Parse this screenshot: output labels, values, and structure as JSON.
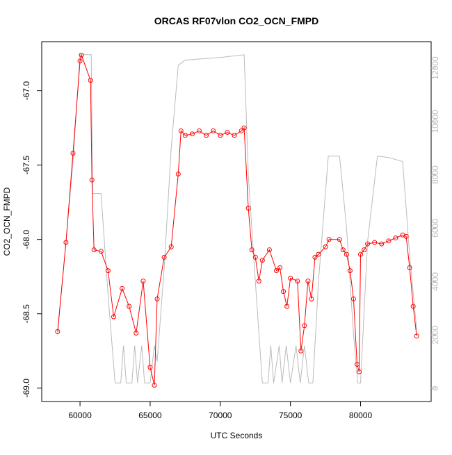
{
  "chart_data": {
    "type": "line",
    "title": "ORCAS RF07vlon CO2_OCN_FMPD",
    "x_label": "UTC Seconds",
    "y_label": "CO2_OCN_FMPD",
    "xlim": [
      57270,
      85030
    ],
    "xticks": [
      60000,
      65000,
      70000,
      75000,
      80000
    ],
    "ylim": [
      -69.09,
      -66.67
    ],
    "yticks": [
      {
        "value": -69,
        "label": "-69.0"
      },
      {
        "value": -68.5,
        "label": "-68.5"
      },
      {
        "value": -68,
        "label": "-68.0"
      },
      {
        "value": -67.5,
        "label": "-67.5"
      },
      {
        "value": -67,
        "label": "-67.0"
      }
    ],
    "y2lim": [
      -495,
      12990
    ],
    "y2ticks": [
      0,
      2000,
      4000,
      6000,
      8000,
      10000,
      12000
    ],
    "series": [
      {
        "color": "#bbbbbb",
        "axis": "y2",
        "x": [
          58400,
          59000,
          59500,
          60000,
          60800,
          60900,
          61500,
          62000,
          62500,
          62900,
          63100,
          63300,
          63700,
          63900,
          64100,
          64400,
          64600,
          65000,
          65300,
          65500,
          66000,
          66500,
          67000,
          67500,
          70000,
          71700,
          72000,
          72500,
          73000,
          73400,
          73600,
          73800,
          74200,
          74400,
          74700,
          75000,
          75400,
          75700,
          76000,
          76300,
          76600,
          77000,
          77700,
          78500,
          79000,
          79500,
          79800,
          80000,
          80500,
          81200,
          82000,
          83000,
          83500,
          84000
        ],
        "values": [
          2000,
          5500,
          8500,
          12500,
          12500,
          7300,
          7300,
          3500,
          200,
          200,
          1600,
          200,
          200,
          1600,
          200,
          1600,
          200,
          200,
          1600,
          1000,
          4500,
          9000,
          12100,
          12300,
          12400,
          12500,
          8000,
          4000,
          200,
          200,
          1600,
          200,
          1600,
          200,
          1600,
          200,
          1600,
          200,
          1600,
          200,
          200,
          4000,
          8700,
          8700,
          6000,
          2000,
          200,
          200,
          5500,
          8700,
          8650,
          8500,
          5000,
          2200
        ]
      },
      {
        "color": "#ff0000",
        "x": [
          58400,
          59000,
          59500,
          60000,
          60100,
          60750,
          60850,
          61000,
          61500,
          62000,
          62400,
          63000,
          63500,
          64000,
          64500,
          65000,
          65300,
          65500,
          66000,
          66500,
          67000,
          67200,
          67500,
          68000,
          68500,
          69000,
          69500,
          70000,
          70500,
          71000,
          71500,
          71700,
          72000,
          72250,
          72500,
          72750,
          73000,
          73500,
          74000,
          74250,
          74500,
          74750,
          75000,
          75500,
          75750,
          76000,
          76250,
          76500,
          76750,
          77000,
          77500,
          77750,
          78500,
          78750,
          79000,
          79250,
          79500,
          79750,
          79900,
          80000,
          80250,
          80500,
          81000,
          81500,
          82000,
          82500,
          83000,
          83250,
          83500,
          83750,
          84000
        ],
        "values": [
          -68.62,
          -68.02,
          -67.42,
          -66.8,
          -66.76,
          -66.93,
          -67.6,
          -68.07,
          -68.08,
          -68.21,
          -68.52,
          -68.33,
          -68.45,
          -68.63,
          -68.28,
          -68.86,
          -68.98,
          -68.4,
          -68.12,
          -68.05,
          -67.56,
          -67.27,
          -67.3,
          -67.29,
          -67.27,
          -67.3,
          -67.27,
          -67.3,
          -67.28,
          -67.3,
          -67.27,
          -67.25,
          -67.79,
          -68.07,
          -68.12,
          -68.28,
          -68.14,
          -68.07,
          -68.21,
          -68.19,
          -68.35,
          -68.45,
          -68.26,
          -68.28,
          -68.75,
          -68.58,
          -68.28,
          -68.4,
          -68.12,
          -68.1,
          -68.05,
          -68.0,
          -68.0,
          -68.07,
          -68.1,
          -68.21,
          -68.4,
          -68.84,
          -68.89,
          -68.1,
          -68.07,
          -68.03,
          -68.02,
          -68.03,
          -68.01,
          -67.99,
          -67.97,
          -67.98,
          -68.19,
          -68.45,
          -68.65
        ]
      }
    ]
  }
}
